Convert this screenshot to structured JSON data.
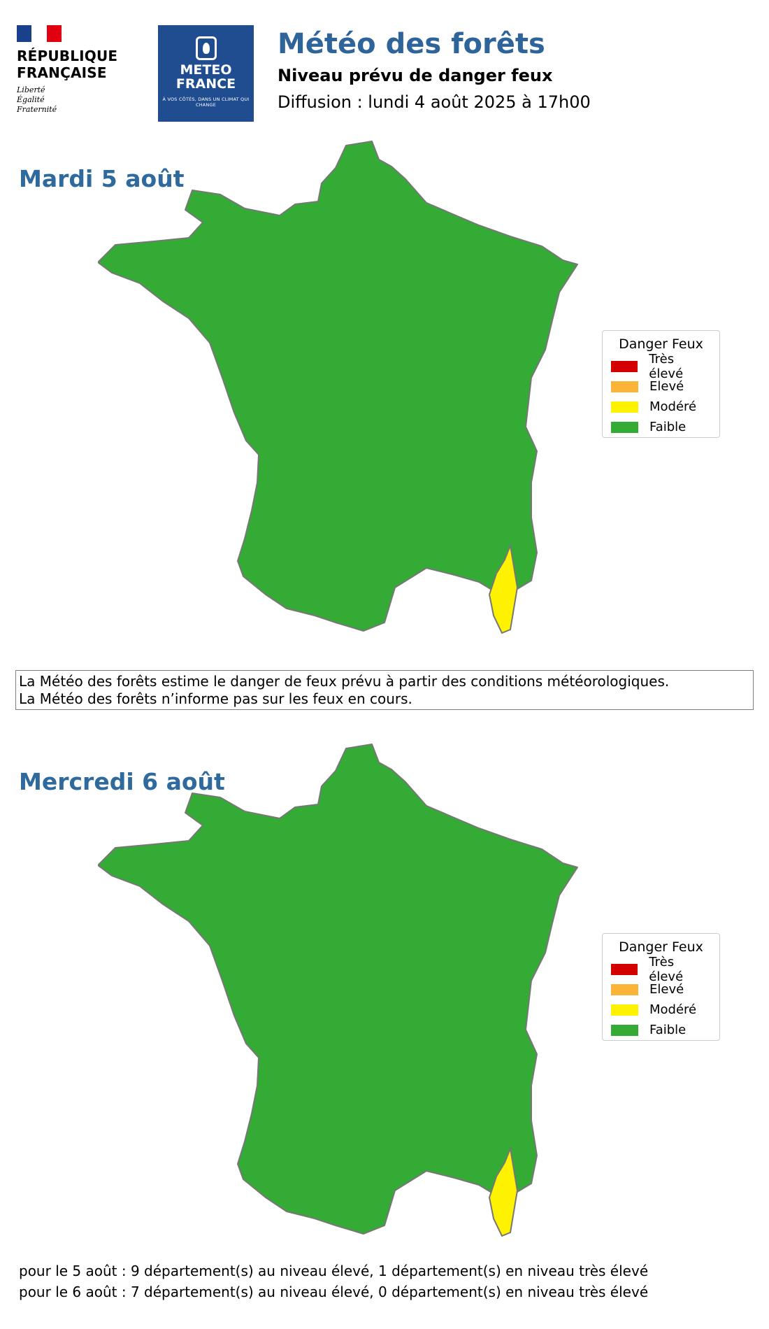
{
  "header": {
    "republic_line1": "RÉPUBLIQUE",
    "republic_line2": "FRANÇAISE",
    "motto": [
      "Liberté",
      "Égalité",
      "Fraternité"
    ],
    "meteo_line1": "METEO",
    "meteo_line2": "FRANCE",
    "meteo_tagline": "À VOS CÔTÉS, DANS UN CLIMAT QUI CHANGE",
    "title": "Météo des forêts",
    "subtitle": "Niveau prévu de danger feux",
    "diffusion": "Diffusion : lundi 4 août 2025 à 17h00"
  },
  "colors": {
    "tres_eleve": "#d40000",
    "eleve": "#fbb436",
    "modere": "#fef200",
    "faible": "#33ab35",
    "border": "#777777",
    "title_blue": "#2e6499"
  },
  "legend": {
    "title": "Danger Feux",
    "items": [
      "Très élevé",
      "Elevé",
      "Modéré",
      "Faible"
    ]
  },
  "days": [
    {
      "label": "Mardi 5 août",
      "very_high": 1,
      "high": 9
    },
    {
      "label": "Mercredi 6 août",
      "very_high": 0,
      "high": 7
    }
  ],
  "info": {
    "line1": "La Météo des forêts estime le danger de feux prévu à partir des conditions météorologiques.",
    "line2": "La Météo des forêts n’informe pas sur les feux en cours."
  },
  "summary": {
    "line1": "pour le 5 août : 9 département(s) au niveau élevé, 1 département(s) en niveau très élevé",
    "line2": "pour le 6 août : 7 département(s) au niveau élevé, 0 département(s) en niveau très élevé"
  }
}
